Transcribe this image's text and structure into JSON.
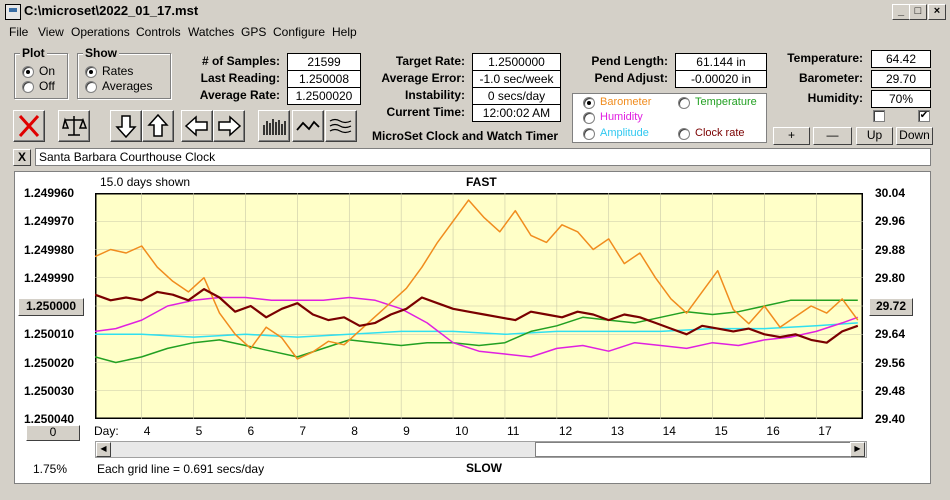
{
  "window": {
    "title": "C:\\microset\\2022_01_17.mst"
  },
  "menu": [
    "File",
    "View",
    "Operations",
    "Controls",
    "Watches",
    "GPS",
    "Configure",
    "Help"
  ],
  "plot_group": {
    "label": "Plot",
    "options": [
      "On",
      "Off"
    ],
    "selected": "On"
  },
  "show_group": {
    "label": "Show",
    "options": [
      "Rates",
      "Averages"
    ],
    "selected": "Rates"
  },
  "stats": {
    "samples_label": "# of Samples:",
    "samples": "21599",
    "last_reading_label": "Last Reading:",
    "last_reading": "1.250008",
    "average_rate_label": "Average Rate:",
    "average_rate": "1.2500020",
    "target_rate_label": "Target Rate:",
    "target_rate": "1.2500000",
    "average_error_label": "Average Error:",
    "average_error": "-1.0 sec/week",
    "instability_label": "Instability:",
    "instability": "0 secs/day",
    "current_time_label": "Current Time:",
    "current_time": "12:00:02 AM",
    "pend_length_label": "Pend Length:",
    "pend_length": "61.144 in",
    "pend_adjust_label": "Pend Adjust:",
    "pend_adjust": "-0.00020 in",
    "temperature_label": "Temperature:",
    "temperature": "64.42",
    "barometer_label": "Barometer:",
    "barometer": "29.70",
    "humidity_label": "Humidity:",
    "humidity": "70%"
  },
  "app_name": "MicroSet Clock and Watch Timer",
  "series_selector": {
    "barometer": "Barometer",
    "temperature": "Temperature",
    "humidity": "Humidity",
    "amplitude": "Amplitude",
    "clock_rate": "Clock rate",
    "selected": "Barometer"
  },
  "adjust_buttons": {
    "plus": "+",
    "minus": "—",
    "up": "Up",
    "down": "Down"
  },
  "checkboxes": {
    "left": false,
    "right": true
  },
  "watch_name": "Santa Barbara Courthouse Clock",
  "clear_button": "X",
  "colors": {
    "barometer": "#f08c1e",
    "temperature": "#22a022",
    "humidity": "#e020e0",
    "amplitude": "#30e0f0",
    "clock_rate": "#7a0000",
    "plot_bg": "#ffffc8"
  },
  "chart_data": {
    "type": "line",
    "days_shown": "15.0 days shown",
    "top_label": "FAST",
    "bottom_label": "SLOW",
    "x_axis_label": "Day:",
    "x_ticks": [
      4,
      5,
      6,
      7,
      8,
      9,
      10,
      11,
      12,
      13,
      14,
      15,
      16,
      17
    ],
    "xlim": [
      3.1,
      17.9
    ],
    "left_axis_ticks": [
      "1.249960",
      "1.249970",
      "1.249980",
      "1.249990",
      "1.250000",
      "1.250010",
      "1.250020",
      "1.250030",
      "1.250040"
    ],
    "left_selected": "1.250000",
    "left_ylim": [
      1.25004,
      1.24996
    ],
    "right_axis_ticks": [
      "30.04",
      "29.96",
      "29.88",
      "29.80",
      "29.72",
      "29.64",
      "29.56",
      "29.48",
      "29.40"
    ],
    "right_selected": "29.72",
    "right_ylim": [
      29.4,
      30.04
    ],
    "scroll_value": "0",
    "percent": "1.75%",
    "grid_note": "Each grid line = 0.691 secs/day",
    "series": [
      {
        "key": "barometer",
        "axis": "right",
        "x": [
          3.1,
          3.4,
          3.7,
          4.0,
          4.3,
          4.6,
          4.9,
          5.2,
          5.5,
          5.8,
          6.1,
          6.4,
          6.7,
          7.0,
          7.3,
          7.6,
          7.9,
          8.2,
          8.5,
          8.8,
          9.1,
          9.4,
          9.7,
          10.0,
          10.3,
          10.6,
          10.9,
          11.2,
          11.5,
          11.8,
          12.1,
          12.4,
          12.7,
          13.0,
          13.3,
          13.6,
          13.9,
          14.2,
          14.5,
          14.8,
          15.1,
          15.4,
          15.7,
          16.0,
          16.3,
          16.6,
          16.9,
          17.2,
          17.5,
          17.8
        ],
        "y": [
          29.86,
          29.88,
          29.87,
          29.89,
          29.83,
          29.79,
          29.76,
          29.8,
          29.7,
          29.64,
          29.6,
          29.66,
          29.63,
          29.57,
          29.59,
          29.62,
          29.61,
          29.65,
          29.69,
          29.73,
          29.77,
          29.83,
          29.9,
          29.96,
          30.02,
          29.97,
          29.93,
          29.99,
          29.92,
          29.9,
          29.95,
          29.93,
          29.88,
          29.91,
          29.84,
          29.87,
          29.8,
          29.74,
          29.7,
          29.76,
          29.82,
          29.71,
          29.67,
          29.72,
          29.66,
          29.69,
          29.72,
          29.7,
          29.74,
          29.68
        ]
      },
      {
        "key": "temperature",
        "axis": "left",
        "x": [
          3.1,
          3.5,
          4.0,
          4.5,
          5.0,
          5.5,
          6.0,
          6.5,
          7.0,
          7.5,
          8.0,
          8.5,
          9.0,
          9.5,
          10.0,
          10.5,
          11.0,
          11.5,
          12.0,
          12.5,
          13.0,
          13.5,
          14.0,
          14.5,
          15.0,
          15.5,
          16.0,
          16.5,
          17.0,
          17.5,
          17.8
        ],
        "y": [
          1.250018,
          1.25002,
          1.250018,
          1.250015,
          1.250013,
          1.250012,
          1.250014,
          1.250016,
          1.250018,
          1.250015,
          1.250012,
          1.250013,
          1.250014,
          1.250013,
          1.250013,
          1.250014,
          1.250013,
          1.250009,
          1.250007,
          1.250004,
          1.250005,
          1.250006,
          1.250004,
          1.250002,
          1.250003,
          1.250002,
          1.25,
          1.249998,
          1.249998,
          1.249998,
          1.249998
        ]
      },
      {
        "key": "humidity",
        "axis": "left",
        "x": [
          3.1,
          3.5,
          4.0,
          4.5,
          5.0,
          5.5,
          6.0,
          6.5,
          7.0,
          7.5,
          8.0,
          8.5,
          9.0,
          9.5,
          10.0,
          10.5,
          11.0,
          11.5,
          12.0,
          12.5,
          13.0,
          13.5,
          14.0,
          14.5,
          15.0,
          15.5,
          16.0,
          16.5,
          17.0,
          17.5,
          17.8
        ],
        "y": [
          1.250009,
          1.250008,
          1.250005,
          1.25,
          1.249998,
          1.249997,
          1.249997,
          1.249998,
          1.249998,
          1.249998,
          1.249997,
          1.249998,
          1.250001,
          1.250006,
          1.250013,
          1.250016,
          1.250017,
          1.250018,
          1.250015,
          1.250014,
          1.250016,
          1.250013,
          1.250014,
          1.250015,
          1.250013,
          1.250014,
          1.250012,
          1.250011,
          1.250009,
          1.250006,
          1.250004
        ]
      },
      {
        "key": "amplitude",
        "axis": "left",
        "x": [
          3.1,
          4.0,
          5.0,
          6.0,
          7.0,
          8.0,
          9.0,
          10.0,
          11.0,
          12.0,
          13.0,
          14.0,
          15.0,
          16.0,
          17.0,
          17.8
        ],
        "y": [
          1.25001,
          1.25001,
          1.250011,
          1.25001,
          1.250011,
          1.25001,
          1.250009,
          1.250009,
          1.25001,
          1.250009,
          1.250009,
          1.250009,
          1.250008,
          1.250008,
          1.250007,
          1.250006
        ]
      },
      {
        "key": "clock_rate",
        "axis": "left",
        "x": [
          3.1,
          3.4,
          3.7,
          4.0,
          4.3,
          4.6,
          4.9,
          5.2,
          5.5,
          5.8,
          6.1,
          6.4,
          6.7,
          7.0,
          7.3,
          7.6,
          7.9,
          8.2,
          8.5,
          8.8,
          9.1,
          9.4,
          9.7,
          10.0,
          10.3,
          10.6,
          10.9,
          11.2,
          11.5,
          11.8,
          12.1,
          12.4,
          12.7,
          13.0,
          13.3,
          13.6,
          13.9,
          14.2,
          14.5,
          14.8,
          15.1,
          15.4,
          15.7,
          16.0,
          16.3,
          16.6,
          16.9,
          17.2,
          17.5,
          17.8
        ],
        "y": [
          1.249996,
          1.249998,
          1.249997,
          1.249998,
          1.249995,
          1.249996,
          1.249998,
          1.249994,
          1.249997,
          1.250002,
          1.25,
          1.250004,
          1.250001,
          1.249999,
          1.250003,
          1.250005,
          1.250004,
          1.250007,
          1.250006,
          1.250003,
          1.250001,
          1.249997,
          1.249999,
          1.250001,
          1.250002,
          1.250003,
          1.250004,
          1.250005,
          1.250002,
          1.250003,
          1.250004,
          1.250002,
          1.250003,
          1.250005,
          1.250003,
          1.250004,
          1.250006,
          1.250008,
          1.25001,
          1.250007,
          1.250008,
          1.250009,
          1.250008,
          1.25001,
          1.250011,
          1.25001,
          1.250012,
          1.250013,
          1.250009,
          1.250007
        ]
      }
    ]
  }
}
